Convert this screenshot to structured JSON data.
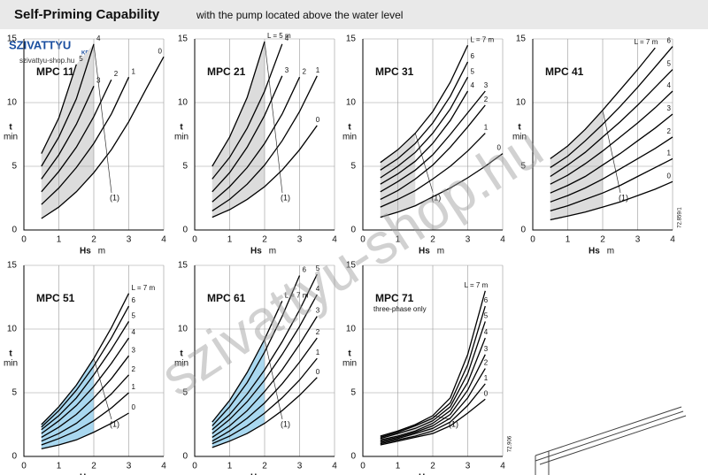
{
  "header": {
    "title": "Self-Priming Capability",
    "subtitle": "with the pump located above the water level"
  },
  "logo": {
    "name": "SZIVATTYU",
    "suffix": "KFT",
    "site": "szivattyu-shop.hu"
  },
  "watermark": "szivattyu-shop.hu",
  "chart_data": [
    {
      "type": "line",
      "title": "MPC 11",
      "ylabel": "t",
      "yunit": "min",
      "xlabel": "Hs",
      "xunit": "m",
      "x": [
        0.5,
        1,
        1.5,
        2,
        2.5,
        3,
        3.5,
        4
      ],
      "xlim": [
        0,
        4
      ],
      "ylim": [
        0,
        15
      ],
      "xticks": [
        0,
        1,
        2,
        3,
        4
      ],
      "yticks": [
        0,
        5,
        10,
        15
      ],
      "grid": true,
      "shade": {
        "until": 2,
        "color": "#dcdcdc"
      },
      "annotation": "(1)",
      "series": [
        {
          "name": "0",
          "color": "#000000",
          "values": [
            0.9,
            1.8,
            3.0,
            4.5,
            6.3,
            8.5,
            11.1,
            13.6
          ]
        },
        {
          "name": "1",
          "color": "#000000",
          "values": [
            2.0,
            3.3,
            4.9,
            6.8,
            9.1,
            12.0,
            null,
            null
          ]
        },
        {
          "name": "2",
          "color": "#000000",
          "values": [
            3.0,
            4.6,
            6.5,
            8.9,
            11.8,
            null,
            null,
            null
          ]
        },
        {
          "name": "3",
          "color": "#000000",
          "values": [
            4.0,
            5.9,
            8.3,
            11.3,
            null,
            null,
            null,
            null
          ]
        },
        {
          "name": "4",
          "color": "#000000",
          "values": [
            5.0,
            7.3,
            10.3,
            14.6,
            null,
            null,
            null,
            null
          ]
        },
        {
          "name": "5",
          "color": "#000000",
          "values": [
            6.0,
            8.8,
            13.0,
            null,
            null,
            null,
            null,
            null
          ]
        }
      ]
    },
    {
      "type": "line",
      "title": "MPC 21",
      "ylabel": "t",
      "yunit": "min",
      "xlabel": "Hs",
      "xunit": "m",
      "x": [
        0.5,
        1,
        1.5,
        2,
        2.5,
        3,
        3.5,
        4
      ],
      "xlim": [
        0,
        4
      ],
      "ylim": [
        0,
        15
      ],
      "xticks": [
        0,
        1,
        2,
        3,
        4
      ],
      "yticks": [
        0,
        5,
        10,
        15
      ],
      "grid": true,
      "shade": {
        "until": 2,
        "color": "#dcdcdc"
      },
      "annotation": "(1)",
      "series": [
        {
          "name": "0",
          "color": "#000000",
          "values": [
            1.0,
            1.6,
            2.4,
            3.4,
            4.7,
            6.3,
            8.2,
            null
          ]
        },
        {
          "name": "1",
          "color": "#000000",
          "values": [
            1.5,
            2.4,
            3.6,
            5.1,
            7.0,
            9.3,
            12.1,
            null
          ]
        },
        {
          "name": "2",
          "color": "#000000",
          "values": [
            2.2,
            3.4,
            4.9,
            6.8,
            9.1,
            12.0,
            null,
            null
          ]
        },
        {
          "name": "3",
          "color": "#000000",
          "values": [
            3.0,
            4.5,
            6.5,
            9.0,
            12.1,
            null,
            null,
            null
          ]
        },
        {
          "name": "4",
          "color": "#000000",
          "values": [
            4.0,
            5.7,
            8.0,
            10.9,
            14.6,
            null,
            null,
            null
          ]
        },
        {
          "name": "L = 5 m",
          "color": "#000000",
          "values": [
            5.0,
            7.3,
            10.4,
            14.8,
            null,
            null,
            null,
            null
          ]
        }
      ]
    },
    {
      "type": "line",
      "title": "MPC 31",
      "ylabel": "t",
      "yunit": "min",
      "xlabel": "Hs",
      "xunit": "m",
      "x": [
        0.5,
        1,
        1.5,
        2,
        2.5,
        3,
        3.5,
        4
      ],
      "xlim": [
        0,
        4
      ],
      "ylim": [
        0,
        15
      ],
      "xticks": [
        0,
        1,
        2,
        3,
        4
      ],
      "yticks": [
        0,
        5,
        10,
        15
      ],
      "grid": true,
      "shade": {
        "until": 1.75,
        "color": "#dcdcdc"
      },
      "annotation": "(1)",
      "series": [
        {
          "name": "0",
          "color": "#000000",
          "values": [
            1.0,
            1.4,
            1.9,
            2.6,
            3.3,
            4.1,
            5.0,
            6.0
          ]
        },
        {
          "name": "1",
          "color": "#000000",
          "values": [
            1.8,
            2.4,
            3.1,
            4.0,
            5.0,
            6.2,
            7.6,
            null
          ]
        },
        {
          "name": "2",
          "color": "#000000",
          "values": [
            2.4,
            3.1,
            4.0,
            5.1,
            6.5,
            8.1,
            9.8,
            null
          ]
        },
        {
          "name": "3",
          "color": "#000000",
          "values": [
            3.0,
            3.8,
            4.7,
            5.9,
            7.5,
            9.2,
            10.9,
            null
          ]
        },
        {
          "name": "4",
          "color": "#000000",
          "values": [
            3.6,
            4.4,
            5.4,
            6.8,
            8.6,
            10.9,
            null,
            null
          ]
        },
        {
          "name": "5",
          "color": "#000000",
          "values": [
            4.1,
            5.0,
            6.1,
            7.6,
            9.5,
            12.0,
            null,
            null
          ]
        },
        {
          "name": "6",
          "color": "#000000",
          "values": [
            4.7,
            5.6,
            6.8,
            8.4,
            10.5,
            13.2,
            null,
            null
          ]
        },
        {
          "name": "L = 7 m",
          "color": "#000000",
          "values": [
            5.3,
            6.3,
            7.6,
            9.3,
            11.6,
            14.5,
            null,
            null
          ]
        }
      ]
    },
    {
      "type": "line",
      "title": "MPC 41",
      "ylabel": "t",
      "yunit": "min",
      "xlabel": "Hs",
      "xunit": "m",
      "code": "72.859/1",
      "x": [
        0.5,
        1,
        1.5,
        2,
        2.5,
        3,
        3.5,
        4
      ],
      "xlim": [
        0,
        4
      ],
      "ylim": [
        0,
        15
      ],
      "xticks": [
        0,
        1,
        2,
        3,
        4
      ],
      "yticks": [
        0,
        5,
        10,
        15
      ],
      "grid": true,
      "shade": {
        "until": 2,
        "color": "#dcdcdc"
      },
      "annotation": "(1)",
      "series": [
        {
          "name": "0",
          "color": "#000000",
          "values": [
            0.8,
            1.1,
            1.4,
            1.8,
            2.2,
            2.7,
            3.2,
            3.8
          ]
        },
        {
          "name": "1",
          "color": "#000000",
          "values": [
            1.5,
            1.9,
            2.4,
            2.9,
            3.5,
            4.2,
            4.9,
            5.6
          ]
        },
        {
          "name": "2",
          "color": "#000000",
          "values": [
            2.2,
            2.7,
            3.3,
            4.0,
            4.8,
            5.6,
            6.4,
            7.3
          ]
        },
        {
          "name": "3",
          "color": "#000000",
          "values": [
            2.9,
            3.5,
            4.2,
            5.1,
            6.0,
            7.0,
            8.0,
            9.1
          ]
        },
        {
          "name": "4",
          "color": "#000000",
          "values": [
            3.6,
            4.3,
            5.2,
            6.2,
            7.3,
            8.4,
            9.6,
            10.9
          ]
        },
        {
          "name": "5",
          "color": "#000000",
          "values": [
            4.2,
            5.1,
            6.1,
            7.3,
            8.5,
            9.8,
            11.2,
            12.6
          ]
        },
        {
          "name": "6",
          "color": "#000000",
          "values": [
            4.9,
            5.8,
            7.0,
            8.3,
            9.7,
            11.2,
            12.8,
            14.4
          ]
        },
        {
          "name": "L = 7 m",
          "color": "#000000",
          "values": [
            5.6,
            6.6,
            7.9,
            9.4,
            11.0,
            12.6,
            14.3,
            null
          ]
        }
      ]
    },
    {
      "type": "line",
      "title": "MPC 51",
      "ylabel": "t",
      "yunit": "min",
      "xlabel": "Hs",
      "xunit": "m",
      "x": [
        0.5,
        1,
        1.5,
        2,
        2.5,
        3,
        3.5,
        4
      ],
      "xlim": [
        0,
        4
      ],
      "ylim": [
        0,
        15
      ],
      "xticks": [
        0,
        1,
        2,
        3,
        4
      ],
      "yticks": [
        0,
        5,
        10,
        15
      ],
      "grid": true,
      "shade": {
        "until": 2,
        "color": "#a9d8f0"
      },
      "annotation": "(1)",
      "series": [
        {
          "name": "0",
          "color": "#000000",
          "values": [
            0.6,
            0.9,
            1.3,
            1.9,
            2.6,
            3.4,
            null,
            null
          ]
        },
        {
          "name": "1",
          "color": "#000000",
          "values": [
            0.9,
            1.4,
            2.0,
            2.8,
            3.8,
            5.0,
            null,
            null
          ]
        },
        {
          "name": "2",
          "color": "#000000",
          "values": [
            1.2,
            1.8,
            2.6,
            3.7,
            4.9,
            6.4,
            null,
            null
          ]
        },
        {
          "name": "3",
          "color": "#000000",
          "values": [
            1.5,
            2.3,
            3.3,
            4.6,
            6.1,
            7.9,
            null,
            null
          ]
        },
        {
          "name": "4",
          "color": "#000000",
          "values": [
            1.8,
            2.8,
            4.0,
            5.5,
            7.3,
            9.3,
            null,
            null
          ]
        },
        {
          "name": "5",
          "color": "#000000",
          "values": [
            2.1,
            3.2,
            4.6,
            6.4,
            8.4,
            10.6,
            null,
            null
          ]
        },
        {
          "name": "6",
          "color": "#000000",
          "values": [
            2.3,
            3.6,
            5.2,
            7.1,
            9.3,
            11.8,
            null,
            null
          ]
        },
        {
          "name": "L = 7 m",
          "color": "#000000",
          "values": [
            2.5,
            3.9,
            5.6,
            7.7,
            10.1,
            12.8,
            null,
            null
          ]
        }
      ]
    },
    {
      "type": "line",
      "title": "MPC 61",
      "ylabel": "t",
      "yunit": "min",
      "xlabel": "Hs",
      "xunit": "m",
      "x": [
        0.5,
        1,
        1.5,
        2,
        2.5,
        3,
        3.5,
        4
      ],
      "xlim": [
        0,
        4
      ],
      "ylim": [
        0,
        15
      ],
      "xticks": [
        0,
        1,
        2,
        3,
        4
      ],
      "yticks": [
        0,
        5,
        10,
        15
      ],
      "grid": true,
      "shade": {
        "until": 2.25,
        "color": "#a9d8f0"
      },
      "annotation": "(1)",
      "series": [
        {
          "name": "0",
          "color": "#000000",
          "values": [
            0.7,
            1.2,
            1.8,
            2.6,
            3.6,
            4.8,
            6.2,
            null
          ]
        },
        {
          "name": "1",
          "color": "#000000",
          "values": [
            1.0,
            1.6,
            2.4,
            3.4,
            4.6,
            6.0,
            7.7,
            null
          ]
        },
        {
          "name": "2",
          "color": "#000000",
          "values": [
            1.2,
            2.0,
            3.0,
            4.2,
            5.7,
            7.4,
            9.3,
            null
          ]
        },
        {
          "name": "3",
          "color": "#000000",
          "values": [
            1.5,
            2.4,
            3.6,
            5.1,
            6.8,
            8.8,
            11.0,
            null
          ]
        },
        {
          "name": "4",
          "color": "#000000",
          "values": [
            1.8,
            2.9,
            4.3,
            6.0,
            8.0,
            10.2,
            12.7,
            null
          ]
        },
        {
          "name": "5",
          "color": "#000000",
          "values": [
            2.1,
            3.3,
            4.9,
            6.8,
            9.0,
            11.5,
            14.3,
            null
          ]
        },
        {
          "name": "6",
          "color": "#000000",
          "values": [
            2.4,
            3.9,
            5.8,
            8.2,
            11.0,
            14.2,
            null,
            null
          ]
        },
        {
          "name": "L = 7 m",
          "color": "#000000",
          "values": [
            2.7,
            4.4,
            6.6,
            9.2,
            12.2,
            null,
            null,
            null
          ]
        }
      ]
    },
    {
      "type": "line",
      "title": "MPC 71",
      "note": "three-phase only",
      "ylabel": "t",
      "yunit": "min",
      "xlabel": "Hs",
      "xunit": "m",
      "code": "72.906",
      "x": [
        0.5,
        1,
        1.5,
        2,
        2.5,
        3,
        3.5,
        4
      ],
      "xlim": [
        0,
        4
      ],
      "ylim": [
        0,
        15
      ],
      "xticks": [
        0,
        1,
        2,
        3,
        4
      ],
      "yticks": [
        0,
        5,
        10,
        15
      ],
      "grid": true,
      "shade": {
        "until": 2.3,
        "color": "#dcdcdc"
      },
      "annotation": "(1)",
      "series": [
        {
          "name": "0",
          "color": "#000000",
          "values": [
            0.9,
            1.2,
            1.5,
            1.8,
            2.4,
            3.4,
            4.5,
            null
          ]
        },
        {
          "name": "1",
          "color": "#000000",
          "values": [
            1.0,
            1.3,
            1.6,
            2.0,
            2.7,
            4.0,
            5.7,
            null
          ]
        },
        {
          "name": "2",
          "color": "#000000",
          "values": [
            1.1,
            1.4,
            1.8,
            2.2,
            3.0,
            4.6,
            6.9,
            null
          ]
        },
        {
          "name": "3",
          "color": "#000000",
          "values": [
            1.2,
            1.5,
            1.9,
            2.4,
            3.3,
            5.2,
            8.0,
            null
          ]
        },
        {
          "name": "4",
          "color": "#000000",
          "values": [
            1.3,
            1.6,
            2.0,
            2.6,
            3.6,
            5.8,
            9.3,
            null
          ]
        },
        {
          "name": "5",
          "color": "#000000",
          "values": [
            1.4,
            1.8,
            2.2,
            2.8,
            3.9,
            6.5,
            10.6,
            null
          ]
        },
        {
          "name": "6",
          "color": "#000000",
          "values": [
            1.5,
            1.9,
            2.4,
            3.0,
            4.2,
            7.2,
            11.8,
            null
          ]
        },
        {
          "name": "L = 7 m",
          "color": "#000000",
          "values": [
            1.6,
            2.0,
            2.5,
            3.2,
            4.6,
            8.0,
            13.0,
            null
          ]
        }
      ]
    }
  ]
}
